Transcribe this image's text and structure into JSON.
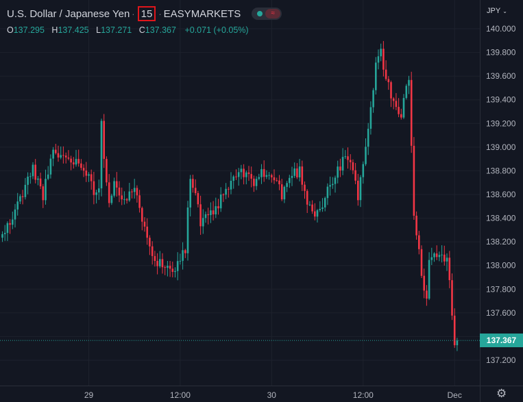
{
  "header": {
    "symbol_name": "U.S. Dollar / Japanese Yen",
    "separator": "·",
    "interval": "15",
    "exchange": "EASYMARKETS",
    "status_icon": "market-open-dot-icon",
    "status_alert_icon": "wave-icon",
    "status_alert_glyph": "≈"
  },
  "ohlc": {
    "o_label": "O",
    "o_value": "137.295",
    "h_label": "H",
    "h_value": "137.425",
    "l_label": "L",
    "l_value": "137.271",
    "c_label": "C",
    "c_value": "137.367",
    "change": "+0.071 (+0.05%)"
  },
  "currency": {
    "label": "JPY",
    "caret": "⌄"
  },
  "current_price": {
    "label": "137.367",
    "value": 137.367
  },
  "settings": {
    "icon": "gear-icon",
    "glyph": "⚙"
  },
  "colors": {
    "background": "#131722",
    "up": "#26a69a",
    "down": "#f23645",
    "grid": "#1e222d",
    "text": "#d1d4dc",
    "highlight_box": "#e0161b"
  },
  "chart_data": {
    "type": "candlestick",
    "title": "U.S. Dollar / Japanese Yen",
    "interval": "15",
    "x_ticks": [
      {
        "label": "29",
        "i": 34
      },
      {
        "label": "12:00",
        "i": 70
      },
      {
        "label": "30",
        "i": 106
      },
      {
        "label": "12:00",
        "i": 142
      },
      {
        "label": "Dec",
        "i": 178
      }
    ],
    "y_ticks": [
      137.2,
      137.4,
      137.6,
      137.8,
      138.0,
      138.2,
      138.4,
      138.6,
      138.8,
      139.0,
      139.2,
      139.4,
      139.6,
      139.8,
      140.0
    ],
    "y_tick_labels": [
      "137.200",
      "137.400",
      "137.600",
      "137.800",
      "138.000",
      "138.200",
      "138.400",
      "138.600",
      "138.800",
      "139.000",
      "139.200",
      "139.400",
      "139.600",
      "139.800",
      "140.000"
    ],
    "ylim": [
      137.05,
      140.2
    ],
    "grid": true,
    "price_scale": "right",
    "close_path": [
      [
        0,
        138.25
      ],
      [
        4,
        138.4
      ],
      [
        8,
        138.62
      ],
      [
        12,
        138.82
      ],
      [
        16,
        138.6
      ],
      [
        20,
        138.95
      ],
      [
        26,
        138.9
      ],
      [
        32,
        138.85
      ],
      [
        36,
        138.62
      ],
      [
        38,
        138.7
      ],
      [
        39,
        139.2
      ],
      [
        40,
        138.9
      ],
      [
        42,
        138.55
      ],
      [
        44,
        138.72
      ],
      [
        48,
        138.55
      ],
      [
        52,
        138.62
      ],
      [
        56,
        138.35
      ],
      [
        60,
        138.05
      ],
      [
        64,
        137.98
      ],
      [
        68,
        138.0
      ],
      [
        72,
        138.15
      ],
      [
        74,
        138.75
      ],
      [
        76,
        138.6
      ],
      [
        78,
        138.35
      ],
      [
        82,
        138.42
      ],
      [
        86,
        138.55
      ],
      [
        90,
        138.7
      ],
      [
        94,
        138.8
      ],
      [
        98,
        138.7
      ],
      [
        102,
        138.78
      ],
      [
        106,
        138.75
      ],
      [
        108,
        138.7
      ],
      [
        110,
        138.6
      ],
      [
        114,
        138.78
      ],
      [
        117,
        138.8
      ],
      [
        120,
        138.55
      ],
      [
        123,
        138.45
      ],
      [
        126,
        138.5
      ],
      [
        128,
        138.65
      ],
      [
        131,
        138.75
      ],
      [
        135,
        138.92
      ],
      [
        138,
        138.82
      ],
      [
        140,
        138.55
      ],
      [
        142,
        138.9
      ],
      [
        145,
        139.3
      ],
      [
        147,
        139.7
      ],
      [
        149,
        139.8
      ],
      [
        152,
        139.5
      ],
      [
        155,
        139.35
      ],
      [
        157,
        139.25
      ],
      [
        159,
        139.5
      ],
      [
        160,
        139.55
      ],
      [
        162,
        138.4
      ],
      [
        164,
        138.1
      ],
      [
        166,
        137.8
      ],
      [
        167,
        137.75
      ],
      [
        168,
        138.05
      ],
      [
        170,
        138.1
      ],
      [
        173,
        138.08
      ],
      [
        175,
        138.05
      ],
      [
        176,
        137.85
      ],
      [
        177,
        137.62
      ],
      [
        178,
        137.35
      ],
      [
        179,
        137.37
      ]
    ],
    "last_close": 137.367
  }
}
